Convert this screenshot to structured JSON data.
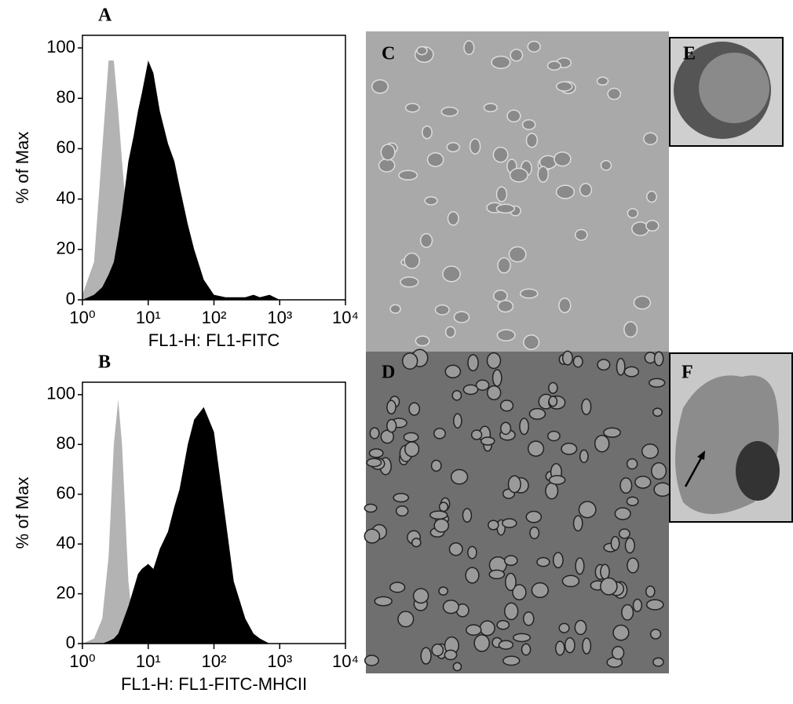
{
  "chart_data": [
    {
      "type": "area",
      "title": "A",
      "xlabel": "FL1-H: FL1-FITC",
      "ylabel": "% of Max",
      "xscale": "log",
      "x": [
        1,
        1.5,
        2,
        2.5,
        3,
        3.5,
        4,
        5,
        6,
        7,
        8,
        10,
        12,
        15,
        20,
        25,
        30,
        40,
        50,
        70,
        100,
        150,
        200,
        300,
        400,
        500,
        700,
        1000
      ],
      "series": [
        {
          "color": "#b3b3b3",
          "values": [
            2,
            15,
            60,
            95,
            95,
            75,
            55,
            25,
            10,
            4,
            1,
            0,
            0,
            0,
            0,
            0,
            0,
            0,
            0,
            0,
            0,
            0,
            0,
            0,
            0,
            0,
            0,
            0
          ]
        },
        {
          "color": "#000000",
          "values": [
            0,
            2,
            5,
            10,
            15,
            25,
            35,
            55,
            65,
            75,
            82,
            95,
            90,
            75,
            62,
            55,
            45,
            30,
            20,
            8,
            2,
            1,
            1,
            1,
            2,
            1,
            2,
            0
          ]
        }
      ],
      "xlim": [
        1,
        10000
      ],
      "xticks": [
        {
          "value": 1,
          "label": "10⁰"
        },
        {
          "value": 10,
          "label": "10¹"
        },
        {
          "value": 100,
          "label": "10²"
        },
        {
          "value": 1000,
          "label": "10³"
        },
        {
          "value": 10000,
          "label": "10⁴"
        }
      ],
      "ylim": [
        0,
        105
      ],
      "yticks": [
        0,
        20,
        40,
        60,
        80,
        100
      ]
    },
    {
      "type": "area",
      "title": "B",
      "xlabel": "FL1-H: FL1-FITC-MHCII",
      "ylabel": "% of Max",
      "xscale": "log",
      "x": [
        1,
        1.5,
        2,
        2.5,
        3,
        3.5,
        4,
        5,
        6,
        7,
        8,
        10,
        12,
        15,
        20,
        25,
        30,
        40,
        50,
        70,
        100,
        150,
        200,
        300,
        400,
        500,
        700,
        1000
      ],
      "series": [
        {
          "color": "#b3b3b3",
          "values": [
            0,
            2,
            10,
            35,
            80,
            98,
            80,
            25,
            5,
            1,
            0,
            0,
            0,
            0,
            0,
            0,
            0,
            0,
            0,
            0,
            0,
            0,
            0,
            0,
            0,
            0,
            0,
            0
          ]
        },
        {
          "color": "#000000",
          "values": [
            0,
            0,
            0,
            1,
            2,
            4,
            8,
            15,
            22,
            28,
            30,
            32,
            30,
            38,
            45,
            55,
            62,
            80,
            90,
            95,
            85,
            50,
            25,
            10,
            4,
            2,
            0,
            0
          ]
        }
      ],
      "xlim": [
        1,
        10000
      ],
      "xticks": [
        {
          "value": 1,
          "label": "10⁰"
        },
        {
          "value": 10,
          "label": "10¹"
        },
        {
          "value": 100,
          "label": "10²"
        },
        {
          "value": 1000,
          "label": "10³"
        },
        {
          "value": 10000,
          "label": "10⁴"
        }
      ],
      "ylim": [
        0,
        105
      ],
      "yticks": [
        0,
        20,
        40,
        60,
        80,
        100
      ]
    }
  ],
  "panels": [
    {
      "label": "C"
    },
    {
      "label": "D"
    },
    {
      "label": "E"
    },
    {
      "label": "F"
    }
  ]
}
